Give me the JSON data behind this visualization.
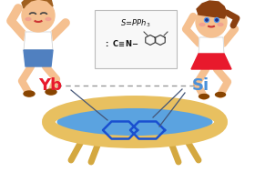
{
  "bg_color": "#ffffff",
  "trampoline_frame_color": "#e8c060",
  "trampoline_surface_color": "#5ba3e0",
  "trampoline_leg_color": "#d4a840",
  "naphthalene_color": "#1a50d0",
  "dashed_line_color": "#999999",
  "yb_color": "#e8192c",
  "si_color": "#4a90d9",
  "yb_label": "Yb",
  "si_label": "Si",
  "skin_color": "#f5c090",
  "hair_color_boy": "#a06020",
  "hair_color_girl": "#8B4010",
  "shirt_color": "#ffffff",
  "shorts_color": "#5080c0",
  "skirt_color": "#e8192c",
  "line_color": "#445577",
  "box_bg": "#f8f8f8",
  "box_edge": "#bbbbbb",
  "fig_width": 2.8,
  "fig_height": 1.89,
  "dpi": 100
}
